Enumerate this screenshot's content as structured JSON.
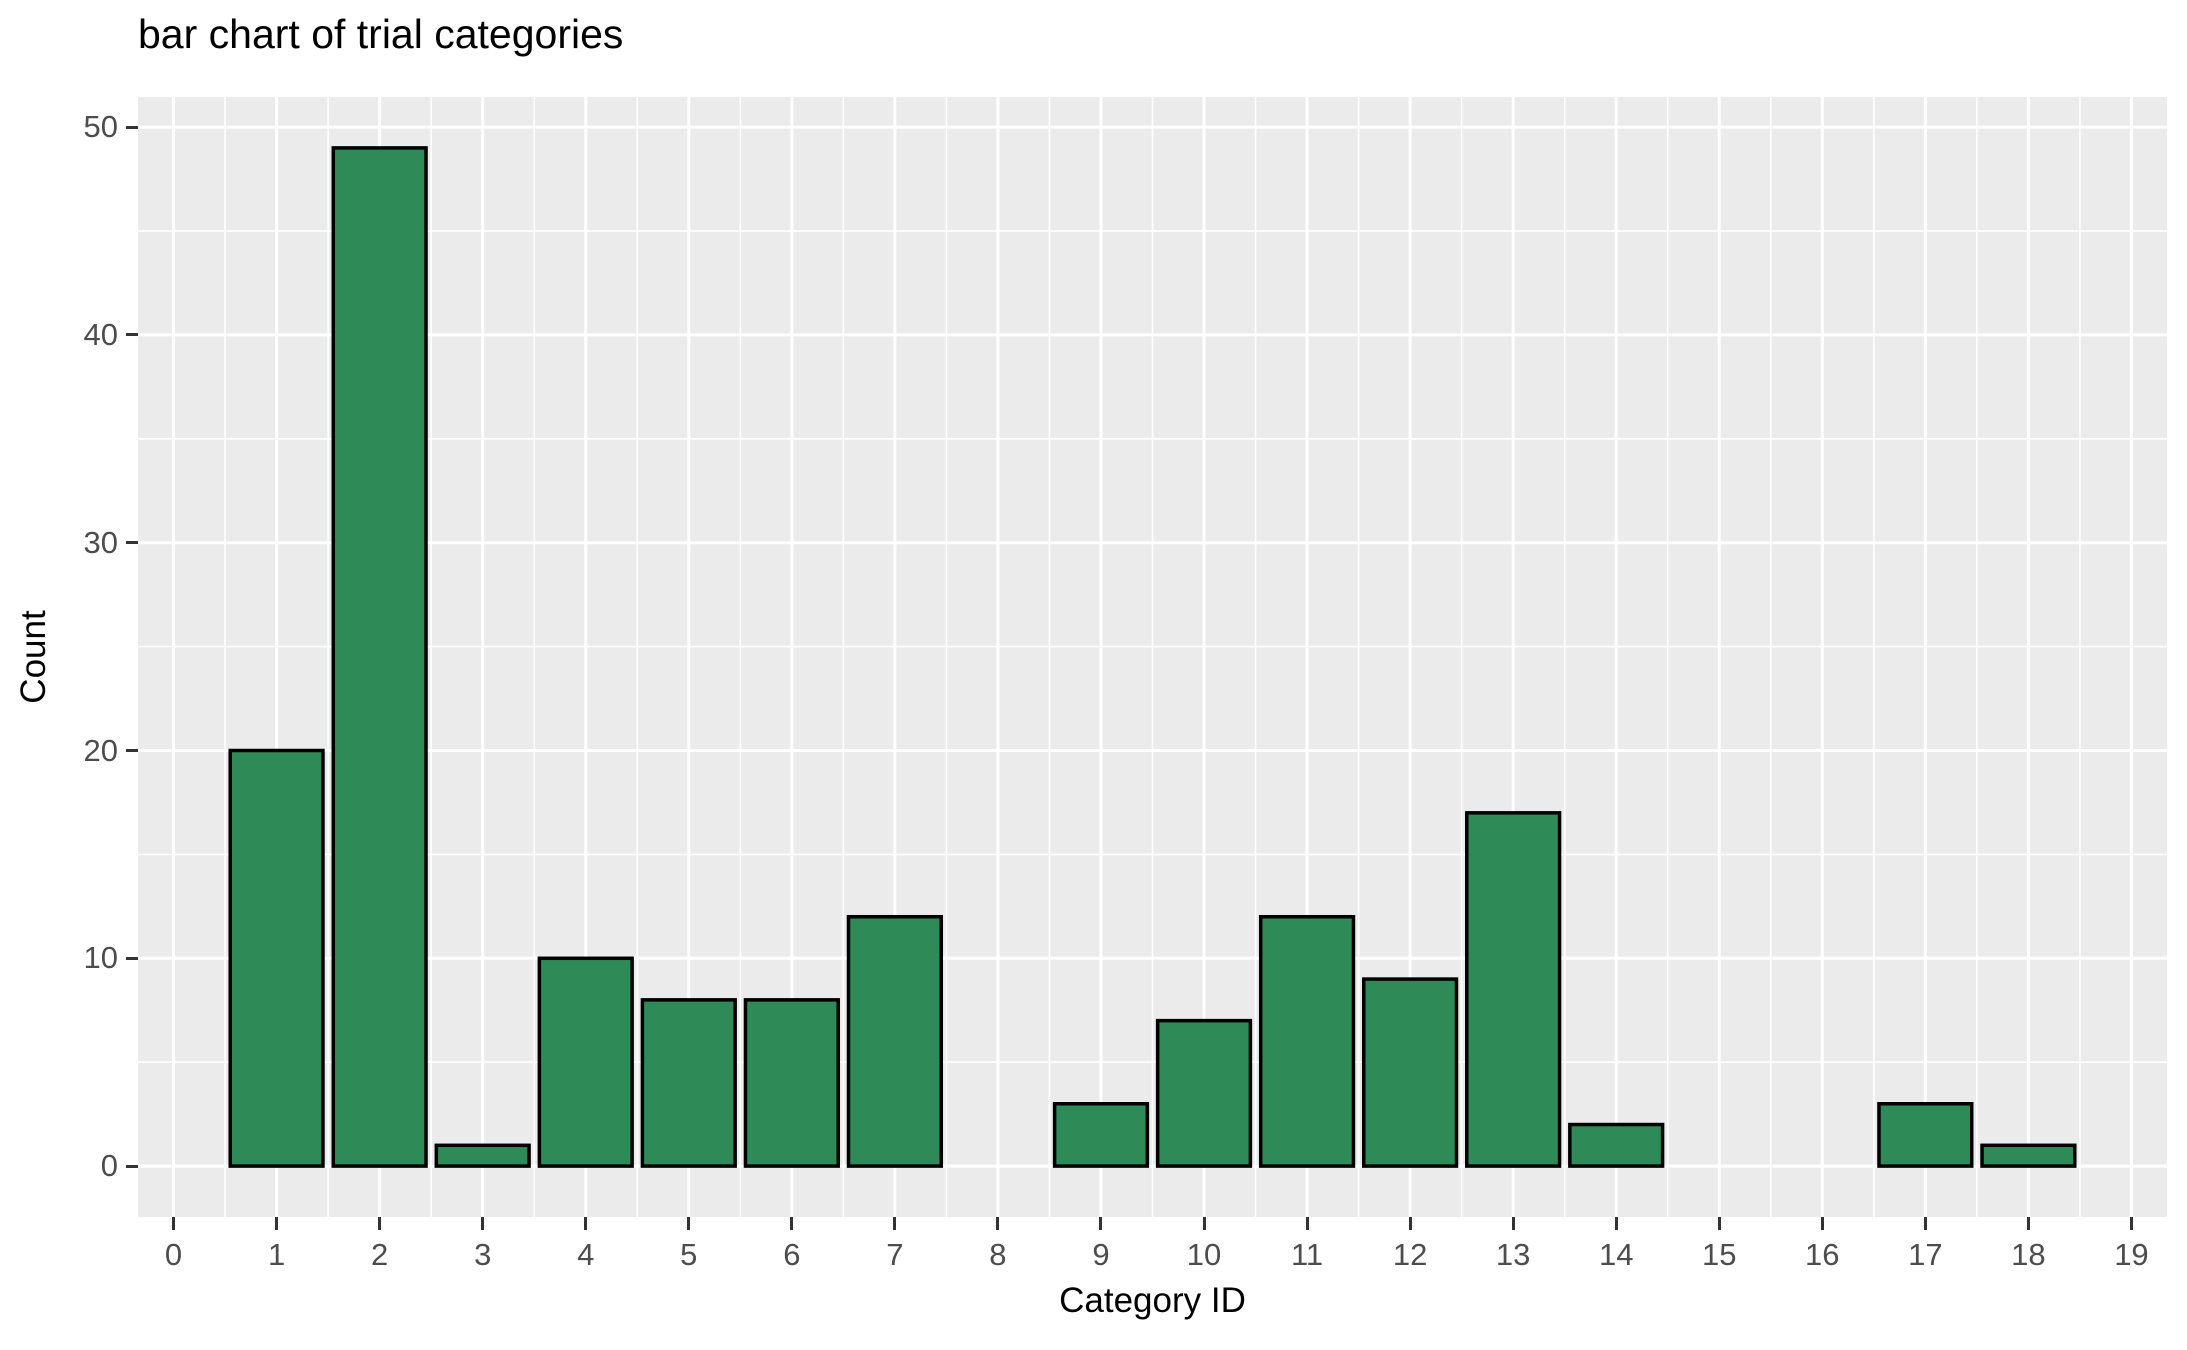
{
  "chart_data": {
    "type": "bar",
    "title": "bar chart of trial categories",
    "xlabel": "Category ID",
    "ylabel": "Count",
    "categories": [
      0,
      1,
      2,
      3,
      4,
      5,
      6,
      7,
      8,
      9,
      10,
      11,
      12,
      13,
      14,
      15,
      16,
      17,
      18,
      19
    ],
    "values": [
      0,
      20,
      49,
      1,
      10,
      8,
      8,
      12,
      0,
      3,
      7,
      12,
      9,
      17,
      2,
      0,
      0,
      3,
      1,
      0
    ],
    "x_ticks": [
      0,
      1,
      2,
      3,
      4,
      5,
      6,
      7,
      8,
      9,
      10,
      11,
      12,
      13,
      14,
      15,
      16,
      17,
      18,
      19
    ],
    "y_ticks": [
      0,
      10,
      20,
      30,
      40,
      50
    ],
    "y_minor_ticks": [
      5,
      15,
      25,
      35,
      45
    ],
    "x_minor_ticks": [
      0.5,
      1.5,
      2.5,
      3.5,
      4.5,
      5.5,
      6.5,
      7.5,
      8.5,
      9.5,
      10.5,
      11.5,
      12.5,
      13.5,
      14.5,
      15.5,
      16.5,
      17.5,
      18.5
    ],
    "xlim": [
      -0.345,
      19.345
    ],
    "ylim": [
      -2.45,
      51.45
    ],
    "bar_width": 0.9,
    "grid": "on",
    "legend": "none",
    "colors": {
      "bar_fill": "#2e8b57",
      "bar_border": "#000000",
      "panel_background": "#ebebeb",
      "gridline_major": "#ffffff",
      "gridline_minor": "#ffffff",
      "tick_label": "#4d4d4d",
      "tick_mark": "#333333",
      "title_text": "#000000",
      "axis_title_text": "#000000"
    }
  }
}
